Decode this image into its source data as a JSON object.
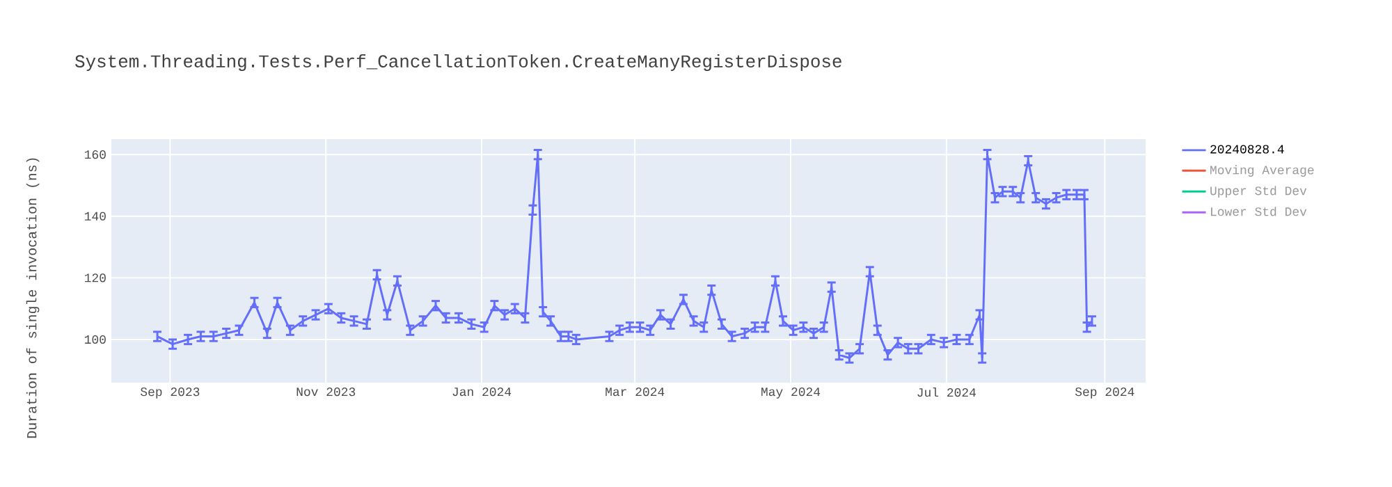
{
  "chart_data": {
    "type": "line",
    "title": "System.Threading.Tests.Perf_CancellationToken.CreateManyRegisterDispose",
    "ylabel": "Duration of single invocation (ns)",
    "x": [
      "2023-08-27",
      "2023-09-02",
      "2023-09-08",
      "2023-09-13",
      "2023-09-18",
      "2023-09-23",
      "2023-09-28",
      "2023-10-04",
      "2023-10-09",
      "2023-10-13",
      "2023-10-18",
      "2023-10-23",
      "2023-10-28",
      "2023-11-02",
      "2023-11-07",
      "2023-11-12",
      "2023-11-17",
      "2023-11-21",
      "2023-11-25",
      "2023-11-29",
      "2023-12-04",
      "2023-12-09",
      "2023-12-14",
      "2023-12-18",
      "2023-12-23",
      "2023-12-28",
      "2024-01-02",
      "2024-01-06",
      "2024-01-10",
      "2024-01-14",
      "2024-01-18",
      "2024-01-21",
      "2024-01-23",
      "2024-01-25",
      "2024-01-28",
      "2024-02-01",
      "2024-02-04",
      "2024-02-07",
      "2024-02-20",
      "2024-02-24",
      "2024-02-28",
      "2024-03-03",
      "2024-03-07",
      "2024-03-11",
      "2024-03-15",
      "2024-03-20",
      "2024-03-24",
      "2024-03-28",
      "2024-03-31",
      "2024-04-04",
      "2024-04-08",
      "2024-04-13",
      "2024-04-17",
      "2024-04-21",
      "2024-04-25",
      "2024-04-28",
      "2024-05-02",
      "2024-05-06",
      "2024-05-10",
      "2024-05-14",
      "2024-05-17",
      "2024-05-20",
      "2024-05-24",
      "2024-05-28",
      "2024-06-01",
      "2024-06-04",
      "2024-06-08",
      "2024-06-12",
      "2024-06-16",
      "2024-06-20",
      "2024-06-25",
      "2024-06-30",
      "2024-07-05",
      "2024-07-10",
      "2024-07-14",
      "2024-07-15",
      "2024-07-17",
      "2024-07-20",
      "2024-07-23",
      "2024-07-27",
      "2024-07-30",
      "2024-08-02",
      "2024-08-05",
      "2024-08-09",
      "2024-08-13",
      "2024-08-17",
      "2024-08-21",
      "2024-08-24",
      "2024-08-25",
      "2024-08-27"
    ],
    "series": [
      {
        "name": "20240828.4",
        "color": "#636efa",
        "values": [
          101,
          98.5,
          100,
          101,
          101,
          102,
          103,
          112,
          102,
          112,
          103,
          106,
          108,
          110,
          107,
          106,
          105,
          121,
          108,
          119,
          103,
          106,
          111,
          107,
          107,
          105,
          104,
          111,
          108,
          110,
          107,
          142,
          160,
          109,
          106,
          101,
          101,
          100,
          101,
          103,
          104,
          104,
          103,
          108,
          105,
          113,
          106,
          104,
          116,
          105,
          101,
          102,
          104,
          104,
          119,
          106,
          103,
          104,
          102,
          104,
          117,
          95,
          94,
          97,
          122,
          103,
          95,
          99,
          97,
          97,
          100,
          99,
          100,
          100,
          108,
          94,
          160,
          146,
          148,
          148,
          146,
          158,
          146,
          144,
          146,
          147,
          147,
          147,
          104,
          106
        ],
        "errors": [
          1.5,
          1.5,
          1.5,
          1.5,
          1.5,
          1.5,
          1.5,
          1.5,
          1.5,
          1.5,
          1.5,
          1.5,
          1.5,
          1.5,
          1.5,
          1.5,
          1.5,
          1.5,
          1.5,
          1.5,
          1.5,
          1.5,
          1.5,
          1.5,
          1.5,
          1.5,
          1.5,
          1.5,
          1.5,
          1.5,
          1.5,
          1.5,
          1.5,
          1.5,
          1.5,
          1.5,
          1.5,
          1.5,
          1.5,
          1.5,
          1.5,
          1.5,
          1.5,
          1.5,
          1.5,
          1.5,
          1.5,
          1.5,
          1.5,
          1.5,
          1.5,
          1.5,
          1.5,
          1.5,
          1.5,
          1.5,
          1.5,
          1.5,
          1.5,
          1.5,
          1.5,
          1.5,
          1.5,
          1.5,
          1.5,
          1.5,
          1.5,
          1.5,
          1.5,
          1.5,
          1.5,
          1.5,
          1.5,
          1.5,
          1.5,
          1.5,
          1.5,
          1.5,
          1.5,
          1.5,
          1.5,
          1.5,
          1.5,
          1.5,
          1.5,
          1.5,
          1.5,
          1.5,
          1.5,
          1.5
        ]
      },
      {
        "name": "Moving Average",
        "color": "#ef553b",
        "values": [
          null,
          null,
          null,
          null,
          null,
          null,
          null,
          null,
          null,
          null,
          null,
          null,
          null,
          null,
          null,
          null,
          null,
          null,
          null,
          null,
          null,
          null,
          null,
          null,
          null,
          null,
          null,
          null,
          null,
          null,
          null,
          null,
          null,
          null,
          null,
          null,
          null,
          null,
          null,
          null,
          null,
          null,
          null,
          null,
          null,
          null,
          null,
          null,
          null,
          null,
          null,
          null,
          null,
          null,
          null,
          null,
          null,
          null,
          null,
          null,
          null,
          null,
          null,
          null,
          null,
          null,
          null,
          null,
          null,
          null,
          null,
          null,
          null,
          null,
          null,
          null,
          null,
          null,
          null,
          null,
          null,
          null,
          null,
          null,
          null,
          null,
          null,
          null,
          null,
          null
        ]
      },
      {
        "name": "Upper Std Dev",
        "color": "#00cc96",
        "values": [
          null,
          null,
          null,
          null,
          null,
          null,
          null,
          null,
          null,
          null,
          null,
          null,
          null,
          null,
          null,
          null,
          null,
          null,
          null,
          null,
          null,
          null,
          null,
          null,
          null,
          null,
          null,
          null,
          null,
          null,
          null,
          null,
          null,
          null,
          null,
          null,
          null,
          null,
          null,
          null,
          null,
          null,
          null,
          null,
          null,
          null,
          null,
          null,
          null,
          null,
          null,
          null,
          null,
          null,
          null,
          null,
          null,
          null,
          null,
          null,
          null,
          null,
          null,
          null,
          null,
          null,
          null,
          null,
          null,
          null,
          null,
          null,
          null,
          null,
          null,
          null,
          null,
          null,
          null,
          null,
          null,
          null,
          null,
          null,
          null,
          null,
          null,
          null,
          null,
          null
        ]
      },
      {
        "name": "Lower Std Dev",
        "color": "#ab63fa",
        "values": [
          null,
          null,
          null,
          null,
          null,
          null,
          null,
          null,
          null,
          null,
          null,
          null,
          null,
          null,
          null,
          null,
          null,
          null,
          null,
          null,
          null,
          null,
          null,
          null,
          null,
          null,
          null,
          null,
          null,
          null,
          null,
          null,
          null,
          null,
          null,
          null,
          null,
          null,
          null,
          null,
          null,
          null,
          null,
          null,
          null,
          null,
          null,
          null,
          null,
          null,
          null,
          null,
          null,
          null,
          null,
          null,
          null,
          null,
          null,
          null,
          null,
          null,
          null,
          null,
          null,
          null,
          null,
          null,
          null,
          null,
          null,
          null,
          null,
          null,
          null,
          null,
          null,
          null,
          null,
          null,
          null,
          null,
          null,
          null,
          null,
          null,
          null,
          null,
          null,
          null
        ]
      }
    ],
    "xlim": [
      "2023-08-09",
      "2024-09-17"
    ],
    "ylim": [
      86,
      165
    ],
    "xticks": [
      {
        "value": "2023-09-01",
        "label": "Sep 2023"
      },
      {
        "value": "2023-11-01",
        "label": "Nov 2023"
      },
      {
        "value": "2024-01-01",
        "label": "Jan 2024"
      },
      {
        "value": "2024-03-01",
        "label": "Mar 2024"
      },
      {
        "value": "2024-05-01",
        "label": "May 2024"
      },
      {
        "value": "2024-07-01",
        "label": "Jul 2024"
      },
      {
        "value": "2024-09-01",
        "label": "Sep 2024"
      }
    ],
    "yticks": [
      100,
      120,
      140,
      160
    ],
    "grid": true,
    "legend": "top right",
    "marker": "none",
    "line_style": "solid"
  }
}
